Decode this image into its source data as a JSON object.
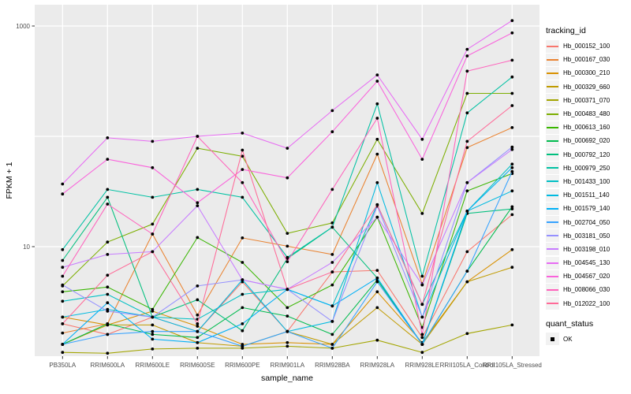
{
  "chart_data": {
    "type": "line",
    "title": "",
    "xlabel": "sample_name",
    "ylabel": "FPKM + 1",
    "y_scale": "log10",
    "grid": true,
    "legend_position": "right",
    "y_ticks": [
      {
        "label": "1000",
        "value": 1000
      },
      {
        "label": "10",
        "value": 10
      }
    ],
    "y_gridlines": [
      10,
      100,
      1000
    ],
    "ylim": [
      0.95,
      1500
    ],
    "categories": [
      "PB350LA",
      "RRIM600LA",
      "RRIM600LE",
      "RRIM600SE",
      "RRIM600PE",
      "RRIM901LA",
      "RRIM928BA",
      "RRIM928LA",
      "RRIM928LE",
      "RRII105LA_Control",
      "RRII105LA_Stressed"
    ],
    "legend": {
      "color_title": "tracking_id",
      "shape_title": "quant_status",
      "shape_items": [
        {
          "label": "OK",
          "marker": "black-square"
        }
      ]
    },
    "point_color": "#000000",
    "series": [
      {
        "name": "Hb_000152_100",
        "color": "#F8766D",
        "values": [
          2.0,
          1.6,
          2.3,
          1.7,
          4.8,
          1.7,
          5.9,
          6.1,
          1.5,
          9.0,
          19.5
        ]
      },
      {
        "name": "Hb_000167_030",
        "color": "#EA8331",
        "values": [
          1.65,
          2.0,
          13,
          2.4,
          12,
          10.1,
          8.5,
          69,
          4.6,
          79,
          120
        ]
      },
      {
        "name": "Hb_000300_210",
        "color": "#D89000",
        "values": [
          2.3,
          1.95,
          2.6,
          1.9,
          1.3,
          1.35,
          1.3,
          3.9,
          1.35,
          4.8,
          9.4
        ]
      },
      {
        "name": "Hb_000329_660",
        "color": "#C09B00",
        "values": [
          1.3,
          1.95,
          1.95,
          1.35,
          1.25,
          1.7,
          1.3,
          2.8,
          1.3,
          4.8,
          6.5
        ]
      },
      {
        "name": "Hb_000371_070",
        "color": "#A3A500",
        "values": [
          1.1,
          1.08,
          1.18,
          1.2,
          1.2,
          1.25,
          1.2,
          1.42,
          1.1,
          1.63,
          1.95
        ]
      },
      {
        "name": "Hb_000483_480",
        "color": "#7CAE00",
        "values": [
          4.4,
          11,
          16,
          78,
          66,
          13.2,
          16.4,
          94,
          20,
          245,
          245
        ]
      },
      {
        "name": "Hb_000613_160",
        "color": "#39B600",
        "values": [
          3.9,
          4.3,
          2.7,
          12.1,
          7.2,
          2.8,
          4.5,
          18.5,
          1.85,
          32,
          46
        ]
      },
      {
        "name": "Hb_000692_020",
        "color": "#00BB4E",
        "values": [
          1.3,
          2.0,
          1.6,
          1.5,
          2.8,
          2.35,
          1.6,
          5.0,
          1.3,
          6.0,
          23
        ]
      },
      {
        "name": "Hb_000792_120",
        "color": "#00BF7D",
        "values": [
          7.5,
          28,
          2.3,
          3.3,
          1.73,
          7.8,
          15,
          5.2,
          1.3,
          20,
          22
        ]
      },
      {
        "name": "Hb_000979_250",
        "color": "#00C1A3",
        "values": [
          9.4,
          33,
          28,
          33,
          28,
          8.0,
          15,
          197,
          5.4,
          163,
          345
        ]
      },
      {
        "name": "Hb_001433_100",
        "color": "#00BFC4",
        "values": [
          3.2,
          3.7,
          2.3,
          2.2,
          3.7,
          4.1,
          2.9,
          24,
          3.0,
          21,
          56
        ]
      },
      {
        "name": "Hb_001511_140",
        "color": "#00BAE0",
        "values": [
          2.3,
          2.7,
          2.3,
          1.7,
          5.0,
          1.7,
          2.1,
          38,
          2.3,
          21,
          32
        ]
      },
      {
        "name": "Hb_001579_140",
        "color": "#00B0F6",
        "values": [
          1.3,
          3.1,
          1.45,
          1.35,
          2.0,
          4.1,
          2.9,
          5.2,
          1.3,
          21,
          52
        ]
      },
      {
        "name": "Hb_002704_050",
        "color": "#35A2FF",
        "values": [
          1.3,
          1.6,
          1.7,
          1.7,
          1.25,
          1.7,
          1.2,
          4.8,
          1.3,
          6.0,
          48
        ]
      },
      {
        "name": "Hb_003181_050",
        "color": "#9590FF",
        "values": [
          4.5,
          2.6,
          2.3,
          4.4,
          5.0,
          4.1,
          2.1,
          23.3,
          2.3,
          38,
          80
        ]
      },
      {
        "name": "Hb_003198_010",
        "color": "#C77CFF",
        "values": [
          6.5,
          8.5,
          9.0,
          23.5,
          5.0,
          4.1,
          7.2,
          18.5,
          4.5,
          38,
          76
        ]
      },
      {
        "name": "Hb_004545_130",
        "color": "#E76BF3",
        "values": [
          37,
          97,
          90,
          100,
          107,
          78,
          171,
          360,
          94,
          615,
          1120
        ]
      },
      {
        "name": "Hb_004567_020",
        "color": "#FA62DB",
        "values": [
          30,
          62,
          52,
          25,
          50,
          42,
          110,
          316,
          62,
          535,
          865
        ]
      },
      {
        "name": "Hb_008066_030",
        "color": "#FF62BC",
        "values": [
          5.4,
          24.3,
          13,
          100,
          38,
          7.3,
          33,
          146,
          1.6,
          390,
          490
        ]
      },
      {
        "name": "Hb_012022_100",
        "color": "#FF6A98",
        "values": [
          2.0,
          5.5,
          9.0,
          2.0,
          75,
          4.1,
          5.9,
          24,
          3.0,
          90,
          190
        ]
      }
    ],
    "panel_bg": "#EBEBEB",
    "gridline_color": "#FFFFFF",
    "tick_color": "#333333",
    "tick_label_color": "#4D4D4D"
  }
}
